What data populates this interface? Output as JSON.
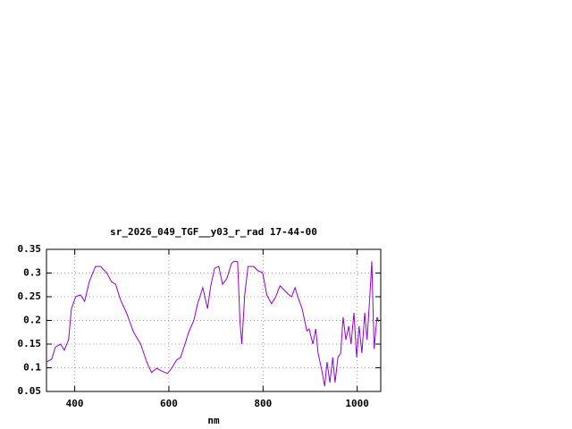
{
  "chart_data": {
    "type": "line",
    "title": "sr_2026_049_TGF__y03_r_rad 17-44-00",
    "xlabel": "nm",
    "x": [
      340,
      351,
      359,
      370,
      378,
      387,
      393,
      402,
      412,
      421,
      431,
      444,
      455,
      468,
      478,
      487,
      497,
      510,
      525,
      540,
      553,
      563,
      574,
      585,
      597,
      606,
      616,
      625,
      634,
      642,
      653,
      661,
      672,
      682,
      689,
      697,
      706,
      714,
      723,
      733,
      738,
      746,
      751,
      755,
      761,
      768,
      780,
      789,
      799,
      808,
      818,
      827,
      836,
      846,
      855,
      861,
      868,
      876,
      883,
      893,
      898,
      906,
      912,
      917,
      925,
      931,
      936,
      942,
      948,
      953,
      959,
      965,
      970,
      976,
      982,
      987,
      993,
      999,
      1004,
      1010,
      1016,
      1021,
      1027,
      1031,
      1036,
      1042,
      1046
    ],
    "series": [
      {
        "color": "#9400d3",
        "values": [
          0.112,
          0.118,
          0.144,
          0.15,
          0.137,
          0.16,
          0.225,
          0.25,
          0.254,
          0.24,
          0.282,
          0.314,
          0.314,
          0.3,
          0.282,
          0.276,
          0.244,
          0.216,
          0.175,
          0.15,
          0.112,
          0.09,
          0.099,
          0.093,
          0.088,
          0.099,
          0.116,
          0.122,
          0.15,
          0.175,
          0.2,
          0.235,
          0.269,
          0.225,
          0.273,
          0.31,
          0.314,
          0.276,
          0.288,
          0.32,
          0.325,
          0.324,
          0.197,
          0.15,
          0.254,
          0.314,
          0.314,
          0.305,
          0.301,
          0.254,
          0.235,
          0.25,
          0.273,
          0.263,
          0.254,
          0.25,
          0.269,
          0.244,
          0.225,
          0.178,
          0.182,
          0.15,
          0.182,
          0.131,
          0.093,
          0.061,
          0.112,
          0.069,
          0.122,
          0.069,
          0.122,
          0.131,
          0.207,
          0.159,
          0.188,
          0.15,
          0.216,
          0.122,
          0.188,
          0.131,
          0.216,
          0.159,
          0.254,
          0.325,
          0.14,
          0.207,
          0.197
        ]
      }
    ],
    "xlim": [
      340,
      1050
    ],
    "ylim": [
      0.05,
      0.35
    ],
    "xticks": [
      400,
      600,
      800,
      1000
    ],
    "yticks": [
      0.05,
      0.1,
      0.15,
      0.2,
      0.25,
      0.3,
      0.35
    ],
    "grid": true
  }
}
